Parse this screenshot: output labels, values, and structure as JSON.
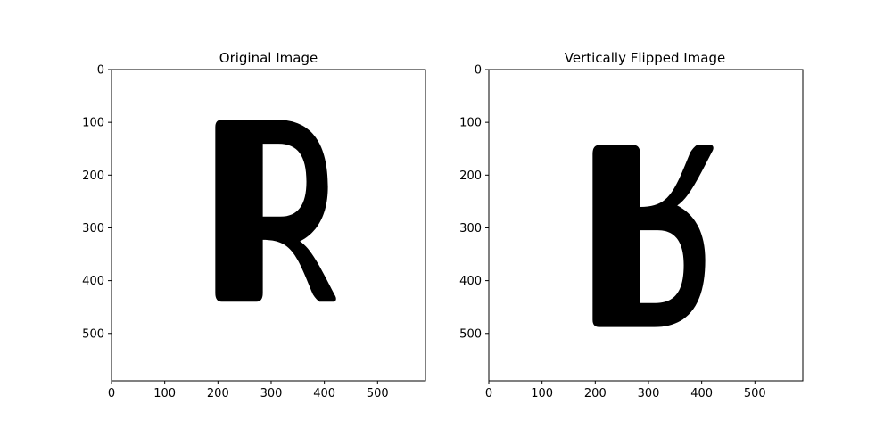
{
  "chart_data": [
    {
      "type": "image",
      "title": "Original Image",
      "image_content": "letter R",
      "image_width": 590,
      "image_height": 590,
      "xlim": [
        0,
        590
      ],
      "ylim": [
        590,
        0
      ],
      "x_ticks": [
        0,
        100,
        200,
        300,
        400,
        500
      ],
      "y_ticks": [
        0,
        100,
        200,
        300,
        400,
        500
      ],
      "glyph": {
        "char": "R",
        "x_start": 195,
        "x_end": 425,
        "y_top": 95,
        "y_bottom": 440
      },
      "flipped_vertically": false
    },
    {
      "type": "image",
      "title": "Vertically Flipped Image",
      "image_content": "letter R flipped vertically",
      "image_width": 590,
      "image_height": 590,
      "xlim": [
        0,
        590
      ],
      "ylim": [
        590,
        0
      ],
      "x_ticks": [
        0,
        100,
        200,
        300,
        400,
        500
      ],
      "y_ticks": [
        0,
        100,
        200,
        300,
        400,
        500
      ],
      "glyph": {
        "char": "R",
        "x_start": 195,
        "x_end": 425,
        "y_top": 143,
        "y_bottom": 488
      },
      "flipped_vertically": true
    }
  ],
  "colors": {
    "ink": "#000000",
    "background": "#ffffff"
  }
}
